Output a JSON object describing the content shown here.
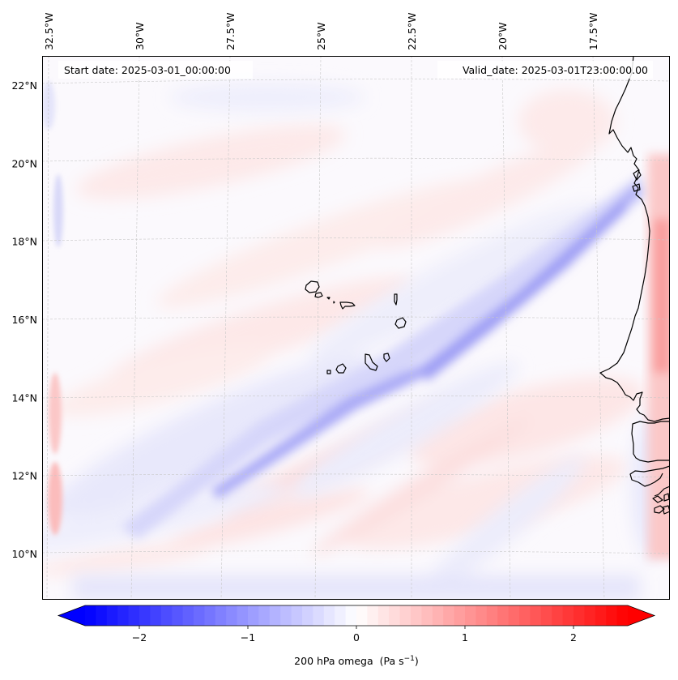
{
  "figure": {
    "start_date_text": "Start date: 2025-03-01_00:00:00",
    "valid_date_text": "Valid_date: 2025-03-01T23:00:00.00",
    "variable": "200 hPa omega",
    "units_base": "(Pa s",
    "units_exp": "−1",
    "units_close": ")"
  },
  "chart_data": {
    "type": "heatmap",
    "title": "",
    "field": "200 hPa omega",
    "units": "Pa s^-1",
    "colormap": "bwr",
    "xlabel": "",
    "ylabel": "",
    "lon_ticks": [
      {
        "label": "32.5°W",
        "value": -32.5
      },
      {
        "label": "30°W",
        "value": -30
      },
      {
        "label": "27.5°W",
        "value": -27.5
      },
      {
        "label": "25°W",
        "value": -25
      },
      {
        "label": "22.5°W",
        "value": -22.5
      },
      {
        "label": "20°W",
        "value": -20
      },
      {
        "label": "17.5°W",
        "value": -17.5
      }
    ],
    "lat_ticks": [
      {
        "label": "22°N",
        "value": 22
      },
      {
        "label": "20°N",
        "value": 20
      },
      {
        "label": "18°N",
        "value": 18
      },
      {
        "label": "16°N",
        "value": 16
      },
      {
        "label": "14°N",
        "value": 14
      },
      {
        "label": "12°N",
        "value": 12
      },
      {
        "label": "10°N",
        "value": 10
      }
    ],
    "grid": true,
    "colorbar": {
      "orientation": "horizontal",
      "placement": "bottom",
      "range": [
        -2.5,
        2.5
      ],
      "level_step": 0.1,
      "extend": "both",
      "ticks": [
        {
          "label": "−2",
          "value": -2
        },
        {
          "label": "−1",
          "value": -1
        },
        {
          "label": "0",
          "value": 0
        },
        {
          "label": "1",
          "value": 1
        },
        {
          "label": "2",
          "value": 2
        }
      ],
      "under_color": "#0000ff",
      "over_color": "#ff0000"
    },
    "features": [
      {
        "name": "sinking band (negative omega)",
        "sign": "negative",
        "approx_min": -0.6,
        "orientation": "SW-NE from ~30.5W 11.5N to ~17W 19.5N"
      },
      {
        "name": "coastal ascent band (positive omega)",
        "sign": "positive",
        "approx_max": 0.6,
        "location": "along 16W, 12-20N"
      },
      {
        "name": "western edge anomaly",
        "sign": "mixed",
        "approx_max": 0.4,
        "location": "near 32.5W, 10-15N"
      }
    ]
  }
}
